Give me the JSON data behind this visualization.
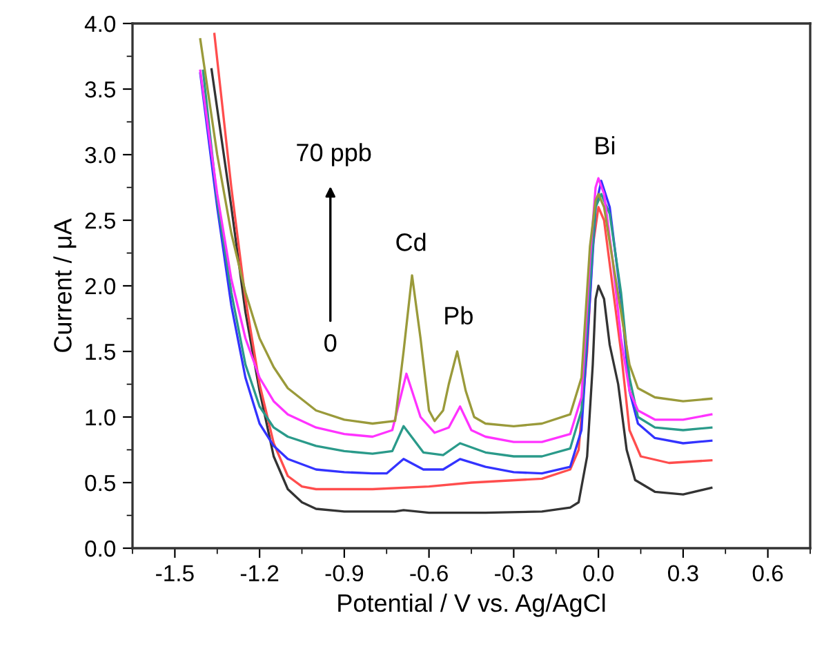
{
  "chart_data": {
    "type": "line",
    "xlabel": "Potential / V vs. Ag/AgCl",
    "ylabel": "Current / μA",
    "xlim": [
      -1.65,
      0.75
    ],
    "ylim": [
      0.0,
      4.0
    ],
    "xticks": [
      {
        "value": -1.5,
        "label": "-1.5"
      },
      {
        "value": -1.2,
        "label": "-1.2"
      },
      {
        "value": -0.9,
        "label": "-0.9"
      },
      {
        "value": -0.6,
        "label": "-0.6"
      },
      {
        "value": -0.3,
        "label": "-0.3"
      },
      {
        "value": 0.0,
        "label": "0.0"
      },
      {
        "value": 0.3,
        "label": "0.3"
      },
      {
        "value": 0.6,
        "label": "0.6"
      }
    ],
    "yticks": [
      {
        "value": 0.0,
        "label": "0.0"
      },
      {
        "value": 0.5,
        "label": "0.5"
      },
      {
        "value": 1.0,
        "label": "1.0"
      },
      {
        "value": 1.5,
        "label": "1.5"
      },
      {
        "value": 2.0,
        "label": "2.0"
      },
      {
        "value": 2.5,
        "label": "2.5"
      },
      {
        "value": 3.0,
        "label": "3.0"
      },
      {
        "value": 3.5,
        "label": "3.5"
      },
      {
        "value": 4.0,
        "label": "4.0"
      }
    ],
    "grid": false,
    "legend": false,
    "marker": "none",
    "line_style": "solid",
    "series": [
      {
        "color": "#333333",
        "x": [
          -1.37,
          -1.3,
          -1.25,
          -1.2,
          -1.15,
          -1.1,
          -1.05,
          -1.0,
          -0.9,
          -0.72,
          -0.69,
          -0.6,
          -0.4,
          -0.2,
          -0.1,
          -0.07,
          -0.04,
          -0.02,
          -0.01,
          0.0,
          0.02,
          0.04,
          0.07,
          0.1,
          0.13,
          0.2,
          0.3,
          0.4
        ],
        "values": [
          3.65,
          2.6,
          1.8,
          1.2,
          0.7,
          0.45,
          0.35,
          0.3,
          0.28,
          0.28,
          0.29,
          0.27,
          0.27,
          0.28,
          0.31,
          0.35,
          0.7,
          1.4,
          1.9,
          2.0,
          1.9,
          1.55,
          1.25,
          0.75,
          0.52,
          0.43,
          0.41,
          0.46
        ]
      },
      {
        "color": "#ff4d4d",
        "x": [
          -1.36,
          -1.3,
          -1.25,
          -1.2,
          -1.15,
          -1.1,
          -1.05,
          -1.0,
          -0.8,
          -0.6,
          -0.45,
          -0.2,
          -0.1,
          -0.07,
          -0.04,
          -0.02,
          0.0,
          0.02,
          0.05,
          0.08,
          0.11,
          0.15,
          0.25,
          0.4
        ],
        "values": [
          3.92,
          2.75,
          1.9,
          1.25,
          0.8,
          0.55,
          0.47,
          0.45,
          0.45,
          0.47,
          0.5,
          0.53,
          0.6,
          0.75,
          1.5,
          2.3,
          2.6,
          2.5,
          2.0,
          1.5,
          0.9,
          0.7,
          0.65,
          0.67
        ]
      },
      {
        "color": "#3333ff",
        "x": [
          -1.41,
          -1.35,
          -1.3,
          -1.25,
          -1.2,
          -1.15,
          -1.1,
          -1.0,
          -0.9,
          -0.8,
          -0.75,
          -0.69,
          -0.62,
          -0.55,
          -0.49,
          -0.4,
          -0.3,
          -0.2,
          -0.1,
          -0.06,
          -0.03,
          -0.01,
          0.01,
          0.04,
          0.08,
          0.11,
          0.14,
          0.2,
          0.3,
          0.4
        ],
        "values": [
          3.62,
          2.6,
          1.85,
          1.3,
          0.95,
          0.78,
          0.68,
          0.6,
          0.58,
          0.57,
          0.57,
          0.68,
          0.6,
          0.6,
          0.68,
          0.62,
          0.58,
          0.57,
          0.62,
          0.9,
          1.9,
          2.6,
          2.8,
          2.6,
          1.9,
          1.2,
          0.95,
          0.84,
          0.8,
          0.82
        ]
      },
      {
        "color": "#2a9a8a",
        "x": [
          -1.4,
          -1.35,
          -1.3,
          -1.25,
          -1.2,
          -1.15,
          -1.1,
          -1.0,
          -0.9,
          -0.8,
          -0.73,
          -0.69,
          -0.62,
          -0.55,
          -0.49,
          -0.4,
          -0.3,
          -0.2,
          -0.1,
          -0.06,
          -0.03,
          -0.01,
          0.01,
          0.04,
          0.08,
          0.11,
          0.14,
          0.2,
          0.3,
          0.4
        ],
        "values": [
          3.64,
          2.65,
          1.95,
          1.4,
          1.08,
          0.92,
          0.85,
          0.78,
          0.74,
          0.72,
          0.74,
          0.93,
          0.73,
          0.71,
          0.8,
          0.73,
          0.7,
          0.7,
          0.76,
          1.05,
          2.0,
          2.6,
          2.7,
          2.55,
          1.95,
          1.3,
          1.0,
          0.92,
          0.9,
          0.92
        ]
      },
      {
        "color": "#ff33ff",
        "x": [
          -1.41,
          -1.35,
          -1.3,
          -1.25,
          -1.2,
          -1.15,
          -1.1,
          -1.0,
          -0.9,
          -0.8,
          -0.73,
          -0.68,
          -0.63,
          -0.58,
          -0.53,
          -0.49,
          -0.45,
          -0.4,
          -0.3,
          -0.2,
          -0.1,
          -0.06,
          -0.03,
          -0.01,
          0.0,
          0.02,
          0.05,
          0.08,
          0.11,
          0.14,
          0.2,
          0.3,
          0.4
        ],
        "values": [
          3.64,
          2.7,
          2.05,
          1.6,
          1.3,
          1.12,
          1.02,
          0.92,
          0.87,
          0.85,
          0.9,
          1.33,
          1.0,
          0.88,
          0.92,
          1.08,
          0.9,
          0.85,
          0.81,
          0.81,
          0.87,
          1.15,
          2.2,
          2.75,
          2.82,
          2.7,
          2.2,
          1.6,
          1.2,
          1.05,
          0.98,
          0.98,
          1.02
        ]
      },
      {
        "color": "#9a9a3a",
        "x": [
          -1.41,
          -1.35,
          -1.3,
          -1.25,
          -1.2,
          -1.15,
          -1.1,
          -1.0,
          -0.9,
          -0.8,
          -0.72,
          -0.69,
          -0.66,
          -0.63,
          -0.6,
          -0.58,
          -0.55,
          -0.53,
          -0.5,
          -0.47,
          -0.44,
          -0.4,
          -0.3,
          -0.2,
          -0.1,
          -0.06,
          -0.03,
          -0.01,
          0.0,
          0.02,
          0.05,
          0.08,
          0.11,
          0.14,
          0.2,
          0.3,
          0.4
        ],
        "values": [
          3.88,
          3.0,
          2.4,
          1.95,
          1.6,
          1.38,
          1.22,
          1.05,
          0.98,
          0.95,
          0.97,
          1.5,
          2.08,
          1.6,
          1.05,
          0.97,
          1.05,
          1.25,
          1.5,
          1.2,
          1.0,
          0.95,
          0.93,
          0.95,
          1.02,
          1.3,
          2.3,
          2.65,
          2.7,
          2.6,
          2.2,
          1.8,
          1.4,
          1.22,
          1.15,
          1.12,
          1.14
        ]
      }
    ],
    "annotations": [
      "Cd",
      "Pb",
      "Bi",
      "70 ppb",
      "0"
    ]
  }
}
